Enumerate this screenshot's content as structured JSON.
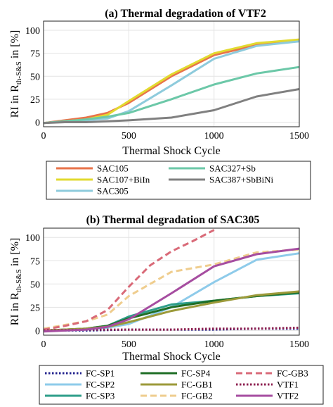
{
  "chart_data": [
    {
      "type": "line",
      "title": "(a) Thermal degradation of VTF2",
      "xlabel": "Thermal Shock Cycle",
      "ylabel": "RI in R",
      "ylabel_sub": "th-S&S",
      "ylabel_suffix": " in [%]",
      "xlim": [
        0,
        1500
      ],
      "ylim": [
        -5,
        110
      ],
      "xticks": [
        0,
        500,
        1000,
        1500
      ],
      "yticks": [
        0,
        25,
        50,
        75,
        100
      ],
      "grid": true,
      "legend_position": "below",
      "series": [
        {
          "name": "SAC105",
          "color": "#e8734a",
          "dash": "solid",
          "x": [
            0,
            125,
            250,
            375,
            500,
            750,
            1000,
            1250,
            1500
          ],
          "y": [
            -1,
            2,
            5,
            10,
            21,
            50,
            73,
            84,
            89
          ]
        },
        {
          "name": "SAC107+BiIn",
          "color": "#e2da2f",
          "dash": "solid",
          "x": [
            0,
            125,
            250,
            375,
            500,
            750,
            1000,
            1250,
            1500
          ],
          "y": [
            -1,
            1,
            3,
            8,
            23,
            52,
            75,
            86,
            90
          ]
        },
        {
          "name": "SAC305",
          "color": "#8ecbdc",
          "dash": "solid",
          "x": [
            0,
            125,
            250,
            375,
            500,
            750,
            1000,
            1250,
            1500
          ],
          "y": [
            -1,
            1,
            2,
            4,
            12,
            40,
            69,
            83,
            88
          ]
        },
        {
          "name": "SAC327+Sb",
          "color": "#6cc8a8",
          "dash": "solid",
          "x": [
            0,
            125,
            250,
            375,
            500,
            750,
            1000,
            1250,
            1500
          ],
          "y": [
            -1,
            1,
            3,
            6,
            10,
            25,
            41,
            53,
            60
          ]
        },
        {
          "name": "SAC387+SbBiNi",
          "color": "#808080",
          "dash": "solid",
          "x": [
            0,
            125,
            250,
            375,
            500,
            750,
            1000,
            1250,
            1500
          ],
          "y": [
            -1,
            0,
            0,
            1,
            2,
            5,
            13,
            28,
            36
          ]
        }
      ]
    },
    {
      "type": "line",
      "title": "(b) Thermal degradation of SAC305",
      "xlabel": "Thermal Shock Cycle",
      "ylabel": "RI in R",
      "ylabel_sub": "th-S&S",
      "ylabel_suffix": " in [%]",
      "xlim": [
        0,
        1500
      ],
      "ylim": [
        -5,
        110
      ],
      "xticks": [
        0,
        500,
        1000,
        1500
      ],
      "yticks": [
        0,
        25,
        50,
        75,
        100
      ],
      "grid": true,
      "legend_position": "below",
      "series": [
        {
          "name": "FC-SP1",
          "color": "#23238e",
          "dash": "dotted",
          "x": [
            0,
            250,
            500,
            750,
            1000,
            1250,
            1500
          ],
          "y": [
            0,
            0,
            1,
            1,
            1,
            2,
            2
          ]
        },
        {
          "name": "FC-SP2",
          "color": "#8ecbea",
          "dash": "solid",
          "x": [
            0,
            125,
            250,
            375,
            500,
            750,
            1000,
            1250,
            1500
          ],
          "y": [
            0,
            0,
            1,
            3,
            7,
            25,
            52,
            76,
            83
          ]
        },
        {
          "name": "FC-SP3",
          "color": "#2e9e8a",
          "dash": "solid",
          "x": [
            0,
            125,
            250,
            375,
            500,
            750,
            1000,
            1250,
            1500
          ],
          "y": [
            0,
            1,
            2,
            5,
            15,
            28,
            32,
            37,
            40
          ]
        },
        {
          "name": "FC-SP4",
          "color": "#1f6e26",
          "dash": "solid",
          "x": [
            0,
            125,
            250,
            375,
            500,
            750,
            1000,
            1250,
            1500
          ],
          "y": [
            0,
            1,
            2,
            5,
            13,
            25,
            32,
            37,
            41
          ]
        },
        {
          "name": "FC-GB1",
          "color": "#9c9a3a",
          "dash": "solid",
          "x": [
            0,
            125,
            250,
            375,
            500,
            750,
            1000,
            1250,
            1500
          ],
          "y": [
            0,
            1,
            2,
            4,
            9,
            21,
            30,
            38,
            42
          ]
        },
        {
          "name": "FC-GB2",
          "color": "#efcd8e",
          "dash": "dashed",
          "x": [
            0,
            125,
            250,
            375,
            500,
            750,
            1000,
            1250,
            1500
          ],
          "y": [
            2,
            6,
            10,
            17,
            37,
            63,
            71,
            84,
            87
          ]
        },
        {
          "name": "FC-GB3",
          "color": "#d96a78",
          "dash": "dashed",
          "x": [
            0,
            125,
            250,
            375,
            500,
            625,
            750,
            875,
            1000
          ],
          "y": [
            1,
            5,
            10,
            22,
            47,
            70,
            85,
            96,
            108
          ]
        },
        {
          "name": "VTF1",
          "color": "#8e2050",
          "dash": "dotted",
          "x": [
            0,
            250,
            500,
            750,
            1000,
            1250,
            1500
          ],
          "y": [
            0,
            1,
            1,
            1,
            2,
            2,
            3
          ]
        },
        {
          "name": "VTF2",
          "color": "#a64da0",
          "dash": "solid",
          "x": [
            0,
            125,
            250,
            375,
            500,
            750,
            1000,
            1250,
            1500
          ],
          "y": [
            -1,
            0,
            1,
            4,
            12,
            40,
            69,
            82,
            88
          ]
        }
      ]
    }
  ]
}
